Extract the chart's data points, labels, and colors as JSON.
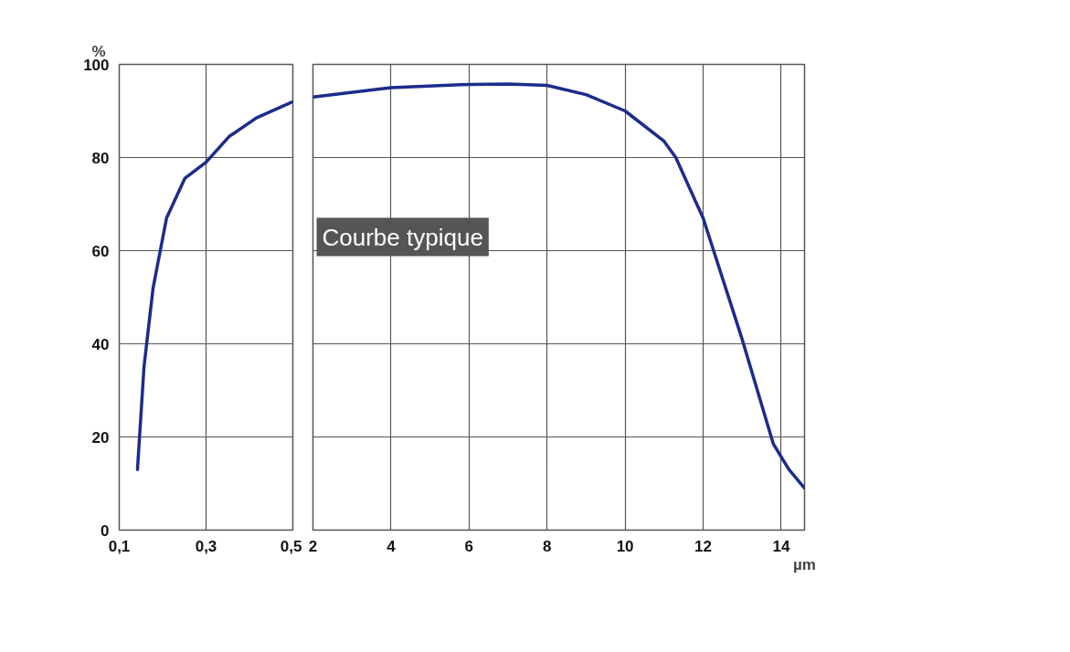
{
  "chart_data": [
    {
      "type": "line",
      "ylabel": "%",
      "x": [
        0.142,
        0.157,
        0.178,
        0.209,
        0.251,
        0.3,
        0.353,
        0.416,
        0.5
      ],
      "series": [
        {
          "color": "#1c2c8c",
          "values": [
            13,
            35,
            52,
            67,
            75.5,
            79,
            84.5,
            88.5,
            92
          ]
        }
      ],
      "xlim": [
        0.1,
        0.5
      ],
      "xticks": [
        {
          "value": 0.1,
          "label": "0,1"
        },
        {
          "value": 0.3,
          "label": "0,3"
        },
        {
          "value": 0.5,
          "label": "0,5"
        }
      ],
      "ylim": [
        0,
        100
      ],
      "yticks": [
        0,
        20,
        40,
        60,
        80,
        100
      ],
      "grid": true
    },
    {
      "type": "line",
      "xlabel": "µm",
      "annotations": [
        "Courbe typique"
      ],
      "x": [
        2,
        4,
        6,
        7,
        8,
        9,
        10,
        11,
        11.3,
        12,
        13,
        13.8,
        14.2,
        14.6
      ],
      "series": [
        {
          "color": "#1c2c8c",
          "values": [
            93,
            95,
            95.7,
            95.8,
            95.5,
            93.5,
            90,
            83.5,
            80,
            67,
            41,
            18.5,
            13,
            9
          ]
        }
      ],
      "xlim": [
        2,
        14.6
      ],
      "xticks": [
        2,
        4,
        6,
        8,
        10,
        12,
        14
      ],
      "ylim": [
        0,
        100
      ],
      "yticks": [
        0,
        20,
        40,
        60,
        80,
        100
      ],
      "grid": true,
      "tick_labels": "x"
    }
  ]
}
